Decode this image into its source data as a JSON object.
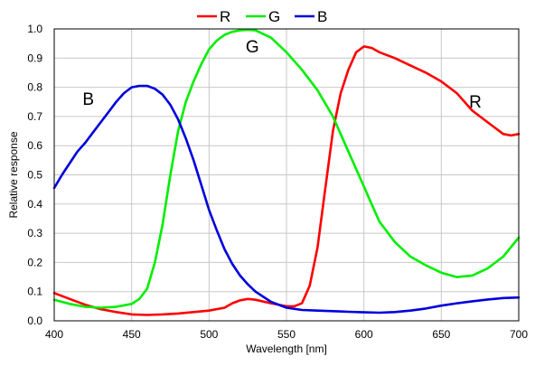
{
  "chart_data": {
    "type": "line",
    "title": "",
    "xlabel": "Wavelength [nm]",
    "ylabel": "Relative response",
    "xlim": [
      400,
      700
    ],
    "ylim": [
      0,
      1.0
    ],
    "x_ticks": [
      "400",
      "450",
      "500",
      "550",
      "600",
      "650",
      "700"
    ],
    "y_ticks": [
      "0.0",
      "0.1",
      "0.2",
      "0.3",
      "0.4",
      "0.5",
      "0.6",
      "0.7",
      "0.8",
      "0.9",
      "1.0"
    ],
    "grid": true,
    "legend_position": "top-center",
    "series": [
      {
        "name": "R",
        "color": "#ff0000",
        "points": [
          [
            400,
            0.095
          ],
          [
            410,
            0.075
          ],
          [
            420,
            0.055
          ],
          [
            430,
            0.04
          ],
          [
            440,
            0.03
          ],
          [
            450,
            0.022
          ],
          [
            460,
            0.02
          ],
          [
            470,
            0.022
          ],
          [
            480,
            0.025
          ],
          [
            490,
            0.03
          ],
          [
            500,
            0.035
          ],
          [
            510,
            0.045
          ],
          [
            515,
            0.06
          ],
          [
            520,
            0.07
          ],
          [
            525,
            0.075
          ],
          [
            530,
            0.072
          ],
          [
            540,
            0.06
          ],
          [
            550,
            0.05
          ],
          [
            555,
            0.05
          ],
          [
            560,
            0.06
          ],
          [
            565,
            0.12
          ],
          [
            570,
            0.25
          ],
          [
            575,
            0.45
          ],
          [
            580,
            0.65
          ],
          [
            585,
            0.78
          ],
          [
            590,
            0.86
          ],
          [
            595,
            0.92
          ],
          [
            600,
            0.94
          ],
          [
            605,
            0.935
          ],
          [
            610,
            0.92
          ],
          [
            620,
            0.9
          ],
          [
            630,
            0.875
          ],
          [
            640,
            0.85
          ],
          [
            650,
            0.82
          ],
          [
            660,
            0.78
          ],
          [
            670,
            0.72
          ],
          [
            680,
            0.68
          ],
          [
            690,
            0.64
          ],
          [
            695,
            0.635
          ],
          [
            700,
            0.64
          ]
        ]
      },
      {
        "name": "G",
        "color": "#00ee00",
        "points": [
          [
            400,
            0.072
          ],
          [
            410,
            0.058
          ],
          [
            420,
            0.048
          ],
          [
            430,
            0.045
          ],
          [
            440,
            0.048
          ],
          [
            450,
            0.058
          ],
          [
            455,
            0.075
          ],
          [
            460,
            0.11
          ],
          [
            465,
            0.2
          ],
          [
            470,
            0.33
          ],
          [
            475,
            0.5
          ],
          [
            480,
            0.65
          ],
          [
            485,
            0.75
          ],
          [
            490,
            0.82
          ],
          [
            495,
            0.88
          ],
          [
            500,
            0.93
          ],
          [
            505,
            0.96
          ],
          [
            510,
            0.98
          ],
          [
            515,
            0.99
          ],
          [
            520,
            0.995
          ],
          [
            525,
            0.997
          ],
          [
            530,
            0.995
          ],
          [
            540,
            0.97
          ],
          [
            550,
            0.92
          ],
          [
            560,
            0.86
          ],
          [
            570,
            0.79
          ],
          [
            580,
            0.7
          ],
          [
            590,
            0.58
          ],
          [
            600,
            0.46
          ],
          [
            605,
            0.4
          ],
          [
            610,
            0.34
          ],
          [
            620,
            0.27
          ],
          [
            630,
            0.22
          ],
          [
            640,
            0.19
          ],
          [
            650,
            0.165
          ],
          [
            660,
            0.15
          ],
          [
            670,
            0.155
          ],
          [
            680,
            0.18
          ],
          [
            690,
            0.22
          ],
          [
            700,
            0.285
          ]
        ]
      },
      {
        "name": "B",
        "color": "#0000dd",
        "points": [
          [
            400,
            0.455
          ],
          [
            405,
            0.5
          ],
          [
            410,
            0.54
          ],
          [
            415,
            0.58
          ],
          [
            420,
            0.61
          ],
          [
            425,
            0.645
          ],
          [
            430,
            0.68
          ],
          [
            435,
            0.715
          ],
          [
            440,
            0.75
          ],
          [
            445,
            0.78
          ],
          [
            450,
            0.8
          ],
          [
            455,
            0.805
          ],
          [
            460,
            0.805
          ],
          [
            465,
            0.795
          ],
          [
            470,
            0.775
          ],
          [
            475,
            0.74
          ],
          [
            480,
            0.69
          ],
          [
            485,
            0.625
          ],
          [
            490,
            0.55
          ],
          [
            495,
            0.465
          ],
          [
            500,
            0.38
          ],
          [
            505,
            0.31
          ],
          [
            510,
            0.245
          ],
          [
            515,
            0.195
          ],
          [
            520,
            0.155
          ],
          [
            525,
            0.125
          ],
          [
            530,
            0.1
          ],
          [
            540,
            0.065
          ],
          [
            550,
            0.045
          ],
          [
            560,
            0.037
          ],
          [
            570,
            0.035
          ],
          [
            580,
            0.033
          ],
          [
            590,
            0.031
          ],
          [
            600,
            0.029
          ],
          [
            610,
            0.028
          ],
          [
            620,
            0.03
          ],
          [
            630,
            0.035
          ],
          [
            640,
            0.042
          ],
          [
            650,
            0.052
          ],
          [
            660,
            0.06
          ],
          [
            670,
            0.067
          ],
          [
            680,
            0.073
          ],
          [
            690,
            0.078
          ],
          [
            700,
            0.08
          ]
        ]
      }
    ],
    "annotations": [
      {
        "text": "B",
        "x": 422,
        "y": 0.74
      },
      {
        "text": "G",
        "x": 528,
        "y": 0.92
      },
      {
        "text": "R",
        "x": 672,
        "y": 0.73
      }
    ]
  }
}
